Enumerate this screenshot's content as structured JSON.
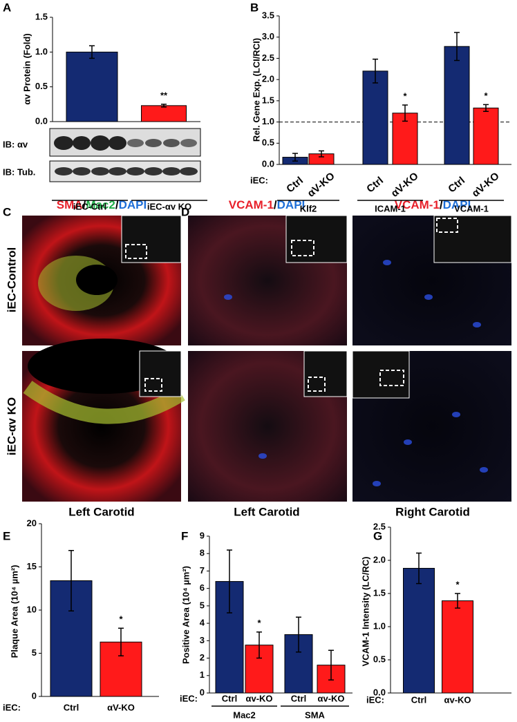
{
  "panels": {
    "blot_labels": [
      "IB: αv",
      "IB: Tub."
    ],
    "C": {
      "label": "C",
      "stain": [
        "SMA",
        "/",
        "Mac2",
        "/",
        "DAPI"
      ],
      "stain_colors": [
        "#e8202a",
        "#000000",
        "#22b04a",
        "#000000",
        "#1e6fd8"
      ],
      "rows": [
        "iEC-Control",
        "iEC-αv KO"
      ],
      "caption": "Left Carotid"
    },
    "D": {
      "label": "D",
      "stain": [
        "VCAM-1",
        "/",
        "DAPI"
      ],
      "stain_colors": [
        "#e8202a",
        "#000000",
        "#1e6fd8"
      ],
      "captions": [
        "Left Carotid",
        "Right Carotid"
      ]
    }
  },
  "chart_data": [
    {
      "type": "bar",
      "label": "A",
      "y_label": "αv Protein (Fold)",
      "categories": [
        "iEC-Ctrl",
        "iEC-αv KO"
      ],
      "values": [
        1.0,
        0.23
      ],
      "errors": [
        0.09,
        0.02
      ],
      "colors": [
        "#142a72",
        "#ff1a1a"
      ],
      "significance": [
        null,
        "**"
      ],
      "ylim": [
        0,
        1.5
      ],
      "yticks": [
        {
          "value": 0,
          "label": "0.0"
        },
        0.5,
        {
          "value": 1,
          "label": "1.0"
        },
        1.5
      ]
    },
    {
      "type": "grouped_bar",
      "label": "B",
      "y_label": "Rel. Gene Exp. (LCI/RCI)",
      "x_label": "iEC:",
      "categories": [
        "Klf2",
        "ICAM-1",
        "VCAM-1"
      ],
      "series": [
        {
          "name": "Ctrl",
          "color": "#142a72",
          "values": [
            0.17,
            2.2,
            2.78
          ],
          "errors": [
            0.09,
            0.28,
            0.33
          ],
          "significance": [
            null,
            null,
            null
          ]
        },
        {
          "name": "αV-KO",
          "color": "#ff1a1a",
          "values": [
            0.25,
            1.21,
            1.33
          ],
          "errors": [
            0.07,
            0.19,
            0.08
          ],
          "significance": [
            null,
            "*",
            "*"
          ]
        }
      ],
      "reference_line": 1,
      "ylim": [
        0,
        3.5
      ],
      "yticks": [
        {
          "value": 0,
          "label": "0.0"
        },
        0.5,
        {
          "value": 1,
          "label": "1.0"
        },
        1.5,
        {
          "value": 2,
          "label": "2.0"
        },
        2.5,
        {
          "value": 3,
          "label": "3.0"
        },
        3.5
      ]
    },
    {
      "type": "bar",
      "label": "E",
      "y_label": "Plaque Area (10⁴ µm²)",
      "x_label": "iEC:",
      "categories": [
        "Ctrl",
        "αV-KO"
      ],
      "values": [
        13.4,
        6.3
      ],
      "errors": [
        3.5,
        1.6
      ],
      "colors": [
        "#142a72",
        "#ff1a1a"
      ],
      "significance": [
        null,
        "*"
      ],
      "ylim": [
        0,
        20
      ],
      "yticks": [
        0,
        5,
        10,
        15,
        20
      ]
    },
    {
      "type": "grouped_bar",
      "label": "F",
      "y_label": "Positive Area (10⁴ µm²)",
      "x_label": "iEC:",
      "categories": [
        "Mac2",
        "SMA"
      ],
      "series": [
        {
          "name": "Ctrl",
          "color": "#142a72",
          "values": [
            6.4,
            3.35
          ],
          "errors": [
            1.8,
            1.0
          ],
          "significance": [
            null,
            null
          ]
        },
        {
          "name": "αv-KO",
          "color": "#ff1a1a",
          "values": [
            2.75,
            1.6
          ],
          "errors": [
            0.75,
            0.85
          ],
          "significance": [
            "*",
            null
          ]
        }
      ],
      "ylim": [
        0,
        9
      ],
      "yticks": [
        0,
        1,
        2,
        3,
        4,
        5,
        6,
        7,
        8,
        9
      ]
    },
    {
      "type": "bar",
      "label": "G",
      "y_label": "VCAM-1 Intensity (LC/RC)",
      "x_label": "iEC:",
      "categories": [
        "Ctrl",
        "αv-KO"
      ],
      "values": [
        1.88,
        1.39
      ],
      "errors": [
        0.23,
        0.11
      ],
      "colors": [
        "#142a72",
        "#ff1a1a"
      ],
      "significance": [
        null,
        "*"
      ],
      "ylim": [
        0,
        2.5
      ],
      "yticks": [
        {
          "value": 0,
          "label": "0.0"
        },
        0.5,
        {
          "value": 1,
          "label": "1.0"
        },
        1.5,
        {
          "value": 2,
          "label": "2.0"
        },
        2.5
      ]
    }
  ]
}
